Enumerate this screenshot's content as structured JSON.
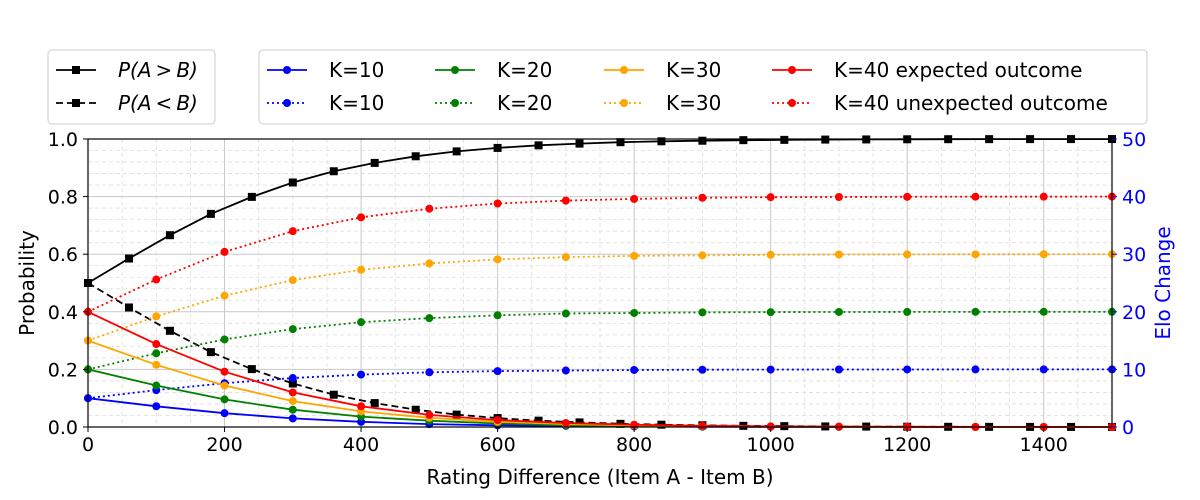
{
  "chart_data": {
    "type": "line",
    "title": "",
    "xlabel": "Rating Difference (Item A - Item B)",
    "ylabel": "Probability",
    "y2label": "Elo Change",
    "xlim": [
      0,
      1500
    ],
    "ylim": [
      0,
      1.0
    ],
    "y2lim": [
      0,
      50
    ],
    "xticks": [
      0,
      200,
      400,
      600,
      800,
      1000,
      1200,
      1400
    ],
    "yticks": [
      0.0,
      0.2,
      0.4,
      0.6,
      0.8,
      1.0
    ],
    "y2ticks": [
      0,
      10,
      20,
      30,
      40,
      50
    ],
    "xtick_labels": [
      "0",
      "200",
      "400",
      "600",
      "800",
      "1000",
      "1200",
      "1400"
    ],
    "ytick_labels": [
      "0.0",
      "0.2",
      "0.4",
      "0.6",
      "0.8",
      "1.0"
    ],
    "y2tick_labels": [
      "0",
      "10",
      "20",
      "30",
      "40",
      "50"
    ],
    "grid": true,
    "probability_x": [
      0,
      60,
      120,
      180,
      240,
      300,
      360,
      420,
      480,
      540,
      600,
      660,
      720,
      780,
      840,
      900,
      960,
      1020,
      1080,
      1140,
      1200,
      1260,
      1320,
      1380,
      1440,
      1500
    ],
    "elo_x": [
      0,
      100,
      200,
      300,
      400,
      500,
      600,
      700,
      800,
      900,
      1000,
      1100,
      1200,
      1300,
      1400,
      1500
    ],
    "probability_series": [
      {
        "name": "P(A > B)",
        "label_main": "P(A",
        "label_op": ">",
        "label_end": "B)",
        "color": "#000000",
        "dash": "solid",
        "marker": "square",
        "axis": "left",
        "values": [
          0.5,
          0.585,
          0.666,
          0.74,
          0.799,
          0.849,
          0.888,
          0.917,
          0.94,
          0.957,
          0.969,
          0.978,
          0.984,
          0.989,
          0.992,
          0.994,
          0.996,
          0.997,
          0.998,
          0.9985,
          0.999,
          0.9993,
          0.9995,
          0.9996,
          0.9997,
          0.9998
        ]
      },
      {
        "name": "P(A < B)",
        "label_main": "P(A",
        "label_op": "<",
        "label_end": "B)",
        "color": "#000000",
        "dash": "dashed",
        "marker": "square",
        "axis": "left",
        "values": [
          0.5,
          0.415,
          0.334,
          0.26,
          0.201,
          0.151,
          0.112,
          0.083,
          0.06,
          0.043,
          0.031,
          0.022,
          0.016,
          0.011,
          0.008,
          0.006,
          0.004,
          0.003,
          0.002,
          0.0015,
          0.001,
          0.0007,
          0.0005,
          0.0004,
          0.0003,
          0.0002
        ]
      }
    ],
    "elo_series": [
      {
        "name": "K=10",
        "color": "#0000ff",
        "dash": "solid",
        "marker": "circle",
        "axis": "right",
        "values": [
          5.0,
          3.6,
          2.4,
          1.5,
          0.9,
          0.5,
          0.3,
          0.2,
          0.1,
          0.06,
          0.03,
          0.02,
          0.01,
          0.0,
          0.0,
          0.0
        ]
      },
      {
        "name": "K=10",
        "color": "#0000ff",
        "dash": "dotted",
        "marker": "circle",
        "axis": "right",
        "values": [
          5.0,
          6.4,
          7.6,
          8.5,
          9.1,
          9.5,
          9.7,
          9.8,
          9.9,
          9.94,
          9.97,
          9.98,
          9.99,
          10.0,
          10.0,
          10.0
        ]
      },
      {
        "name": "K=20",
        "color": "#008000",
        "dash": "solid",
        "marker": "circle",
        "axis": "right",
        "values": [
          10.0,
          7.2,
          4.8,
          3.0,
          1.8,
          1.1,
          0.6,
          0.3,
          0.2,
          0.1,
          0.06,
          0.03,
          0.02,
          0.01,
          0.0,
          0.0
        ]
      },
      {
        "name": "K=20",
        "color": "#008000",
        "dash": "dotted",
        "marker": "circle",
        "axis": "right",
        "values": [
          10.0,
          12.8,
          15.2,
          17.0,
          18.2,
          18.9,
          19.4,
          19.7,
          19.8,
          19.9,
          19.94,
          19.97,
          19.98,
          19.99,
          20.0,
          20.0
        ]
      },
      {
        "name": "K=30",
        "color": "#ffa500",
        "dash": "solid",
        "marker": "circle",
        "axis": "right",
        "values": [
          15.0,
          10.8,
          7.2,
          4.5,
          2.7,
          1.6,
          0.9,
          0.5,
          0.3,
          0.2,
          0.09,
          0.05,
          0.03,
          0.02,
          0.01,
          0.0
        ]
      },
      {
        "name": "K=30",
        "color": "#ffa500",
        "dash": "dotted",
        "marker": "circle",
        "axis": "right",
        "values": [
          15.0,
          19.2,
          22.8,
          25.5,
          27.3,
          28.4,
          29.1,
          29.5,
          29.7,
          29.8,
          29.9,
          29.95,
          29.97,
          29.98,
          29.99,
          30.0
        ]
      },
      {
        "name": "K=40 expected outcome",
        "color": "#ff0000",
        "dash": "solid",
        "marker": "circle",
        "axis": "right",
        "values": [
          20.0,
          14.4,
          9.6,
          6.0,
          3.6,
          2.1,
          1.2,
          0.7,
          0.4,
          0.2,
          0.1,
          0.07,
          0.04,
          0.02,
          0.01,
          0.0
        ]
      },
      {
        "name": "K=40 unexpected outcome",
        "color": "#ff0000",
        "dash": "dotted",
        "marker": "circle",
        "axis": "right",
        "values": [
          20.0,
          25.6,
          30.4,
          34.0,
          36.4,
          37.9,
          38.8,
          39.3,
          39.6,
          39.8,
          39.9,
          39.93,
          39.96,
          39.98,
          39.99,
          40.0
        ]
      }
    ],
    "legend_left": [
      "P(A > B)",
      "P(A < B)"
    ],
    "legend_right_columns": [
      [
        "K=10",
        "K=10"
      ],
      [
        "K=20",
        "K=20"
      ],
      [
        "K=30",
        "K=30"
      ],
      [
        "K=40 expected outcome",
        "K=40 unexpected outcome"
      ]
    ],
    "legend_placement": "top, above plot"
  }
}
